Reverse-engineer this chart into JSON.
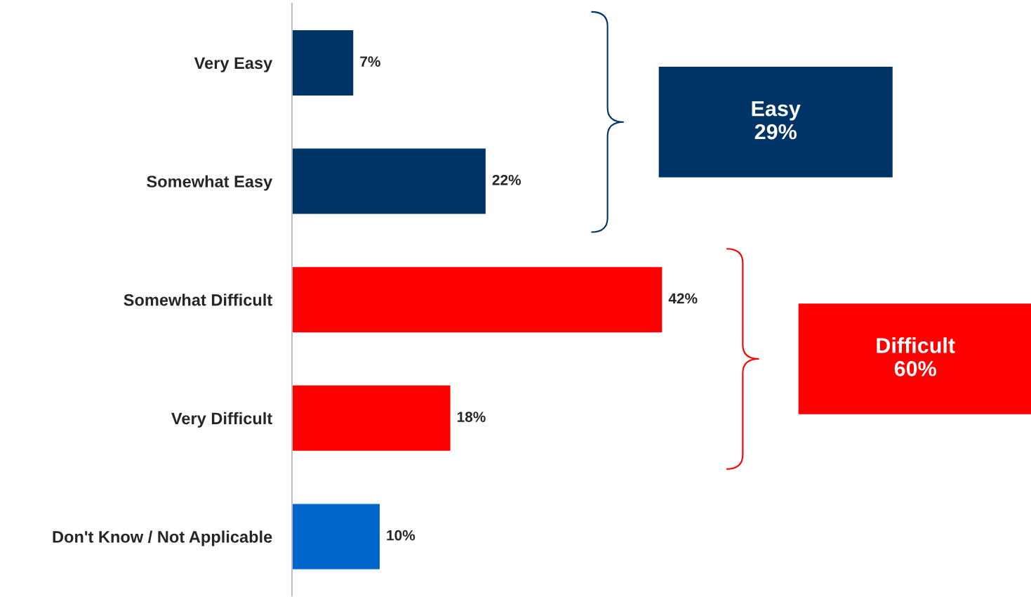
{
  "chart_data": {
    "type": "bar",
    "orientation": "horizontal",
    "categories": [
      "Very Easy",
      "Somewhat Easy",
      "Somewhat Difficult",
      "Very Difficult",
      "Don't Know / Not Applicable"
    ],
    "values": [
      7,
      22,
      42,
      18,
      10
    ],
    "colors": [
      "#003366",
      "#003366",
      "#ff0000",
      "#ff0000",
      "#0066cc"
    ],
    "data_labels": true,
    "value_labels": [
      "7%",
      "22%",
      "42%",
      "18%",
      "10%"
    ],
    "annotations": [
      "Easy\n29%",
      "Difficult\n60%"
    ],
    "grid": false
  }
}
